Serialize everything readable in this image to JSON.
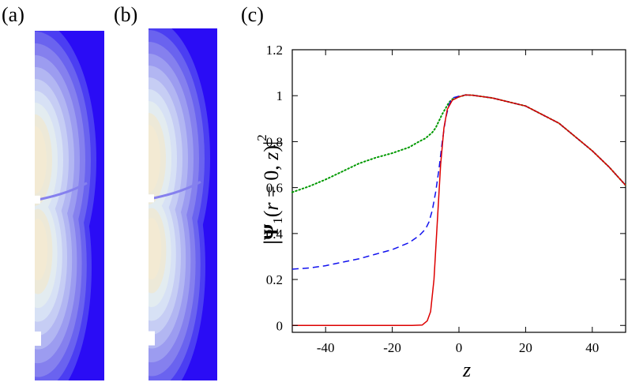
{
  "panels": {
    "a": {
      "label": "(a)"
    },
    "b": {
      "label": "(b)"
    },
    "c": {
      "label": "(c)"
    }
  },
  "colors": {
    "solid": "#dd0000",
    "dashed": "#1111ee",
    "dotted": "#009900",
    "contour_levels": [
      "#2a0cf5",
      "#4b3ef2",
      "#6a63ef",
      "#8580ee",
      "#9c9cf0",
      "#b2b6f2",
      "#c6cdf4",
      "#d7e1f5",
      "#e3ecf0",
      "#ede9d8",
      "#f3ead3"
    ]
  },
  "chart_data": {
    "type": "line",
    "title": "",
    "xlabel": "z",
    "ylabel_parts": {
      "lead": "|Ψ",
      "sub": "1",
      "mid": "(",
      "r": "r",
      "mid2": " = 0, ",
      "z": "z",
      "end": ")|",
      "sup": "2"
    },
    "xlim": [
      -50,
      50
    ],
    "ylim": [
      -0.03,
      1.2
    ],
    "xticks": [
      -40,
      -20,
      0,
      20,
      40
    ],
    "xtick_labels": [
      "-40",
      "-20",
      "0",
      "20",
      "40"
    ],
    "yticks": [
      0,
      0.2,
      0.4,
      0.6,
      0.8,
      1,
      1.2
    ],
    "ytick_labels": [
      "0",
      "0.2",
      "0.4",
      "0.6",
      "0.8",
      "1",
      "1.2"
    ],
    "grid": false,
    "series": [
      {
        "name": "solid",
        "style": "solid",
        "points": [
          [
            -50,
            0
          ],
          [
            -14,
            0
          ],
          [
            -11,
            0.002
          ],
          [
            -9.5,
            0.02
          ],
          [
            -8.5,
            0.06
          ],
          [
            -7.5,
            0.2
          ],
          [
            -6.5,
            0.45
          ],
          [
            -5.5,
            0.7
          ],
          [
            -4.5,
            0.86
          ],
          [
            -3.5,
            0.94
          ],
          [
            -2,
            0.98
          ],
          [
            0,
            0.995
          ],
          [
            2,
            1.003
          ],
          [
            4,
            1.002
          ],
          [
            10,
            0.99
          ],
          [
            20,
            0.955
          ],
          [
            30,
            0.88
          ],
          [
            40,
            0.76
          ],
          [
            45,
            0.69
          ],
          [
            50,
            0.61
          ]
        ]
      },
      {
        "name": "dashed",
        "style": "dashed",
        "points": [
          [
            -50,
            0.245
          ],
          [
            -45,
            0.25
          ],
          [
            -40,
            0.26
          ],
          [
            -35,
            0.275
          ],
          [
            -30,
            0.29
          ],
          [
            -25,
            0.31
          ],
          [
            -20,
            0.33
          ],
          [
            -15,
            0.36
          ],
          [
            -12,
            0.39
          ],
          [
            -10,
            0.42
          ],
          [
            -9,
            0.45
          ],
          [
            -8,
            0.5
          ],
          [
            -7,
            0.58
          ],
          [
            -6,
            0.68
          ],
          [
            -5,
            0.8
          ],
          [
            -4,
            0.9
          ],
          [
            -3,
            0.96
          ],
          [
            -2,
            0.99
          ],
          [
            0,
            0.998
          ],
          [
            2,
            1.003
          ],
          [
            4,
            1.002
          ],
          [
            10,
            0.99
          ],
          [
            20,
            0.955
          ],
          [
            30,
            0.88
          ],
          [
            40,
            0.76
          ],
          [
            45,
            0.69
          ],
          [
            50,
            0.61
          ]
        ]
      },
      {
        "name": "dotted",
        "style": "dotted",
        "points": [
          [
            -50,
            0.58
          ],
          [
            -45,
            0.605
          ],
          [
            -40,
            0.635
          ],
          [
            -35,
            0.67
          ],
          [
            -30,
            0.705
          ],
          [
            -25,
            0.73
          ],
          [
            -20,
            0.75
          ],
          [
            -15,
            0.775
          ],
          [
            -12,
            0.8
          ],
          [
            -10,
            0.815
          ],
          [
            -8,
            0.84
          ],
          [
            -7,
            0.86
          ],
          [
            -6,
            0.89
          ],
          [
            -5,
            0.92
          ],
          [
            -4,
            0.945
          ],
          [
            -3,
            0.97
          ],
          [
            -2,
            0.985
          ],
          [
            0,
            0.995
          ],
          [
            2,
            1.003
          ],
          [
            4,
            1.002
          ],
          [
            10,
            0.99
          ],
          [
            20,
            0.955
          ],
          [
            30,
            0.88
          ],
          [
            40,
            0.76
          ],
          [
            45,
            0.69
          ],
          [
            50,
            0.61
          ]
        ]
      }
    ]
  }
}
